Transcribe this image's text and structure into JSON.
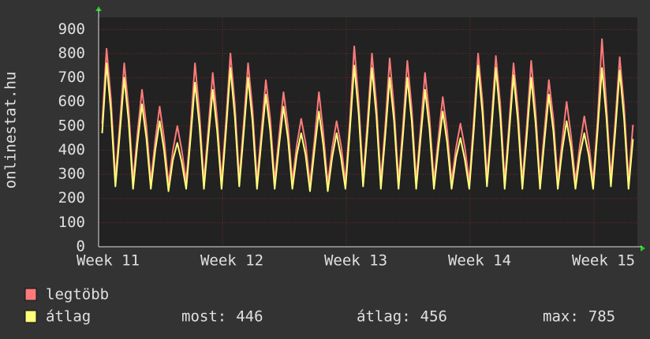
{
  "chart_data": {
    "type": "line",
    "y_label": "onlinestat.hu",
    "x": [
      0.2,
      0.45,
      0.7,
      0.95,
      1.2,
      1.45,
      1.7,
      1.95,
      2.2,
      2.45,
      2.7,
      2.95,
      3.2,
      3.45,
      3.7,
      3.95,
      4.2,
      4.45,
      4.7,
      4.95,
      5.2,
      5.45,
      5.7,
      5.95,
      6.2,
      6.45,
      6.7,
      6.95,
      7.2,
      7.45,
      7.7,
      7.95,
      8.2,
      8.45,
      8.7,
      8.95,
      9.2,
      9.45,
      9.7,
      9.95,
      10.2,
      10.45,
      10.7,
      10.95,
      11.2,
      11.45,
      11.7,
      11.95,
      12.2,
      12.45,
      12.7,
      12.95,
      13.2,
      13.45,
      13.7,
      13.95,
      14.2,
      14.45,
      14.7,
      14.95,
      15.2,
      15.45,
      15.7,
      15.95,
      16.2,
      16.45,
      16.7,
      16.95,
      17.2,
      17.45,
      17.7,
      17.95,
      18.2,
      18.45,
      18.7,
      18.95,
      19.2,
      19.45,
      19.7,
      19.95,
      20.2,
      20.45,
      20.7,
      20.95,
      21.2,
      21.45,
      21.7,
      21.95,
      22.2,
      22.45,
      22.7,
      22.95,
      23.2,
      23.45,
      23.7,
      23.95,
      24.2,
      24.45,
      24.7,
      24.95,
      25.2,
      25.45,
      25.7,
      25.95,
      26.2,
      26.45,
      26.7,
      26.95,
      27.2,
      27.45,
      27.7,
      27.95,
      28.2,
      28.45,
      28.7,
      28.95,
      29.2,
      29.45,
      29.7,
      29.95,
      30.2
    ],
    "series": [
      {
        "name": "legtöbb",
        "color": "#ff7a7a",
        "values": [
          510,
          820,
          610,
          280,
          510,
          760,
          570,
          270,
          470,
          650,
          500,
          270,
          440,
          580,
          450,
          260,
          400,
          500,
          400,
          270,
          490,
          760,
          550,
          270,
          490,
          720,
          530,
          270,
          520,
          800,
          590,
          280,
          510,
          760,
          570,
          270,
          480,
          690,
          530,
          270,
          460,
          640,
          500,
          270,
          420,
          530,
          430,
          260,
          440,
          640,
          470,
          260,
          410,
          520,
          420,
          270,
          520,
          830,
          600,
          280,
          520,
          800,
          590,
          270,
          500,
          780,
          570,
          270,
          500,
          770,
          570,
          270,
          490,
          720,
          540,
          270,
          450,
          620,
          480,
          270,
          410,
          510,
          410,
          270,
          520,
          800,
          600,
          280,
          520,
          790,
          590,
          270,
          510,
          760,
          570,
          270,
          500,
          770,
          560,
          270,
          480,
          690,
          530,
          270,
          440,
          600,
          460,
          270,
          420,
          540,
          430,
          270,
          520,
          860,
          590,
          280,
          520,
          785,
          580,
          270,
          505
        ]
      },
      {
        "name": "átlag",
        "color": "#ffff7a",
        "values": [
          470,
          760,
          560,
          250,
          470,
          700,
          520,
          240,
          430,
          590,
          450,
          240,
          400,
          520,
          400,
          230,
          360,
          430,
          350,
          240,
          450,
          680,
          500,
          240,
          450,
          650,
          480,
          240,
          480,
          740,
          540,
          250,
          470,
          700,
          520,
          240,
          440,
          630,
          480,
          240,
          420,
          580,
          450,
          240,
          380,
          470,
          380,
          230,
          400,
          560,
          420,
          230,
          370,
          470,
          370,
          240,
          480,
          750,
          550,
          250,
          480,
          740,
          540,
          240,
          460,
          700,
          520,
          240,
          460,
          700,
          520,
          240,
          450,
          650,
          490,
          240,
          410,
          560,
          430,
          240,
          370,
          450,
          360,
          240,
          480,
          750,
          550,
          250,
          480,
          740,
          540,
          240,
          470,
          710,
          520,
          240,
          460,
          700,
          510,
          240,
          440,
          630,
          480,
          240,
          400,
          520,
          410,
          240,
          380,
          470,
          380,
          240,
          480,
          740,
          540,
          250,
          480,
          730,
          530,
          240,
          446
        ]
      }
    ],
    "xlim": [
      0,
      30.45
    ],
    "xticks": [
      {
        "value": 0,
        "label": "Week 11"
      },
      {
        "value": 7,
        "label": "Week 12"
      },
      {
        "value": 14,
        "label": "Week 13"
      },
      {
        "value": 21,
        "label": "Week 14"
      },
      {
        "value": 28,
        "label": "Week 15"
      }
    ],
    "ylim": [
      0,
      950
    ],
    "yticks": [
      0,
      100,
      200,
      300,
      400,
      500,
      600,
      700,
      800,
      900
    ],
    "grid": true,
    "stats": [
      {
        "label": "most:",
        "value": 446
      },
      {
        "label": "átlag:",
        "value": 456
      },
      {
        "label": "max:",
        "value": 785
      }
    ]
  }
}
